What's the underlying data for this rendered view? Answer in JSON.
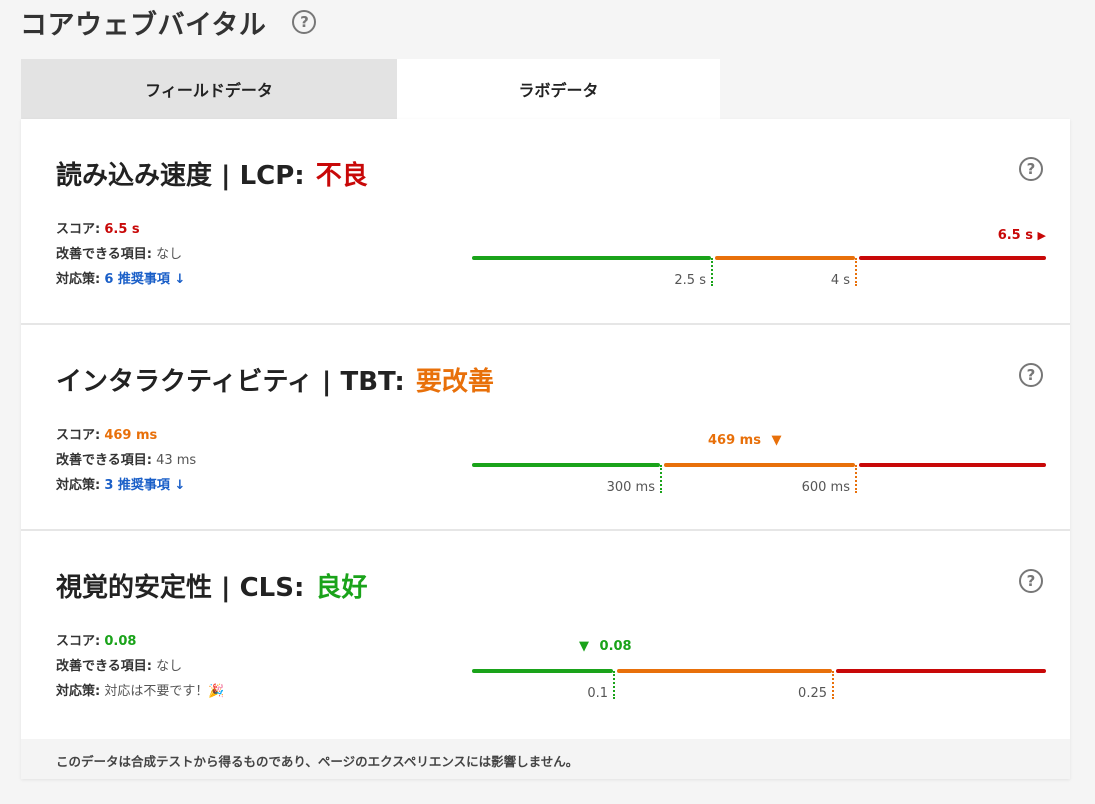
{
  "page": {
    "title": "コアウェブバイタル",
    "help_icon": "?"
  },
  "tabs": [
    {
      "label": "フィールドデータ",
      "active": false
    },
    {
      "label": "ラボデータ",
      "active": true
    }
  ],
  "colors": {
    "good": "#1aa31a",
    "needs_improvement": "#e8700a",
    "poor": "#c80808",
    "link": "#1a5fc8"
  },
  "labels": {
    "score": "スコア:",
    "improvable": "改善できる項目:",
    "action": "対応策:"
  },
  "metrics": [
    {
      "title": "読み込み速度 | LCP:",
      "status": "不良",
      "score": "6.5 s",
      "improvable": "なし",
      "action": "6 推奨事項 ↓",
      "threshold_labels": [
        "2.5 s",
        "4 s"
      ],
      "marker_label": "6.5 s",
      "marker_arrow": "▶"
    },
    {
      "title": "インタラクティビティ | TBT:",
      "status": "要改善",
      "score": "469 ms",
      "improvable": "43 ms",
      "action": "3 推奨事項 ↓",
      "threshold_labels": [
        "300 ms",
        "600 ms"
      ],
      "marker_label": "469 ms",
      "marker_arrow": "▼"
    },
    {
      "title": "視覚的安定性 | CLS:",
      "status": "良好",
      "score": "0.08",
      "improvable": "なし",
      "action": "対応は不要です！🎉",
      "threshold_labels": [
        "0.1",
        "0.25"
      ],
      "marker_label": "0.08",
      "marker_arrow": "▼"
    }
  ],
  "footer": "このデータは合成テストから得るものであり、ページのエクスペリエンスには影響しません。"
}
